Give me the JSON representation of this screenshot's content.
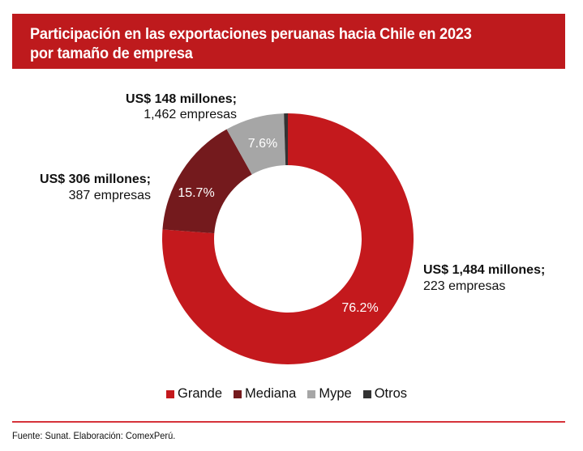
{
  "title": {
    "line1": "Participación en las exportaciones peruanas hacia Chile en 2023",
    "line2": "por tamaño de empresa",
    "background_color": "#be1a1d"
  },
  "chart_data": {
    "type": "pie",
    "variant": "donut",
    "title": "Participación en las exportaciones peruanas hacia Chile en 2023 por tamaño de empresa",
    "start_angle_deg": 0,
    "direction": "clockwise",
    "slices": [
      {
        "name": "Grande",
        "value": 76.2,
        "label": "76.2%",
        "color": "#c4191d",
        "annotation_bold": "US$ 1,484 millones;",
        "annotation_normal": "223 empresas"
      },
      {
        "name": "Mediana",
        "value": 15.7,
        "label": "15.7%",
        "color": "#741a1d",
        "annotation_bold": "US$ 306 millones;",
        "annotation_normal": "387 empresas"
      },
      {
        "name": "Mype",
        "value": 7.6,
        "label": "7.6%",
        "color": "#a6a6a6",
        "annotation_bold": "US$ 148 millones;",
        "annotation_normal": "1,462 empresas"
      },
      {
        "name": "Otros",
        "value": 0.5,
        "label": "",
        "color": "#333333",
        "annotation_bold": "",
        "annotation_normal": ""
      }
    ],
    "legend": [
      "Grande",
      "Mediana",
      "Mype",
      "Otros"
    ],
    "legend_position": "bottom"
  },
  "footer": {
    "source": "Fuente: Sunat. Elaboración: ComexPerú.",
    "rule_color": "#d6333a"
  }
}
